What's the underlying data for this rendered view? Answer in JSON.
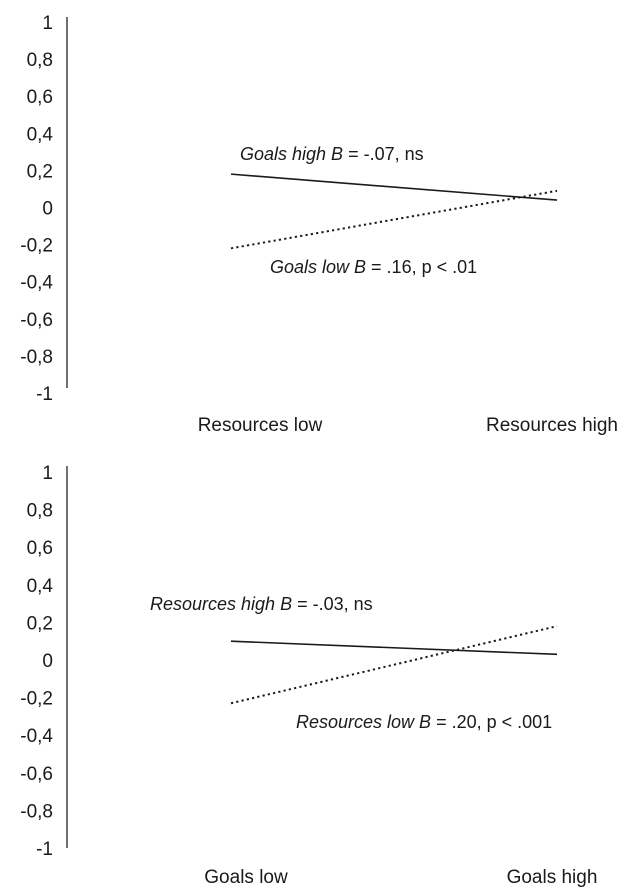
{
  "chart_data": [
    {
      "type": "line",
      "ylim": [
        -1,
        1
      ],
      "yticks": [
        "1",
        "0,8",
        "0,6",
        "0,4",
        "0,2",
        "0",
        "-0,2",
        "-0,4",
        "-0,6",
        "-0,8",
        "-1"
      ],
      "categories": [
        "Resources low",
        "Resources high"
      ],
      "grid": false,
      "series": [
        {
          "name": "Goals high",
          "style": "solid",
          "values": [
            0.18,
            0.04
          ]
        },
        {
          "name": "Goals low",
          "style": "dotted",
          "values": [
            -0.22,
            0.09
          ]
        }
      ],
      "annotations": [
        {
          "italic": "Goals high B",
          "plain": " = -.07, ns"
        },
        {
          "italic": "Goals low B",
          "plain": " = .16, p < .01"
        }
      ]
    },
    {
      "type": "line",
      "ylim": [
        -1,
        1
      ],
      "yticks": [
        "1",
        "0,8",
        "0,6",
        "0,4",
        "0,2",
        "0",
        "-0,2",
        "-0,4",
        "-0,6",
        "-0,8",
        "-1"
      ],
      "categories": [
        "Goals low",
        "Goals high"
      ],
      "grid": false,
      "series": [
        {
          "name": "Resources high",
          "style": "solid",
          "values": [
            0.1,
            0.03
          ]
        },
        {
          "name": "Resources low",
          "style": "dotted",
          "values": [
            -0.23,
            0.18
          ]
        }
      ],
      "annotations": [
        {
          "italic": "Resources high B",
          "plain": " = -.03, ns"
        },
        {
          "italic": "Resources low B",
          "plain": " = .20, p < .001"
        }
      ]
    }
  ]
}
